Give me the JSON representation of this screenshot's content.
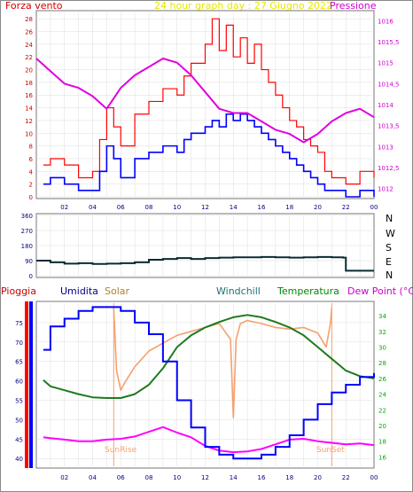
{
  "header": {
    "left_label": "Forza vento",
    "title": "24 hour graph day : 27 Giugno 2022",
    "right_label": "Pressione"
  },
  "bottom_header": {
    "pioggia": "Pioggia",
    "umidita": "Umidita",
    "solar": "Solar",
    "windchill": "Windchill",
    "temperatura": "Temperatura",
    "dewpoint": "Dew Point (°C)"
  },
  "colors": {
    "wind": "#ff0000",
    "gust": "#0000ff",
    "pressure": "#e000e0",
    "direction": "#0a2a33",
    "humidity": "#0000ff",
    "solar": "#f4a070",
    "temperature": "#1e7a1e",
    "dewpoint": "#ff00ff",
    "rain": "#ff0000",
    "left_axis": "#cc0000",
    "right_axis": "#cc00cc",
    "temp_axis": "#00aa00"
  },
  "sun_labels": {
    "sunrise": "SunRise",
    "sunset": "SunSet"
  },
  "chart_data": [
    {
      "type": "line",
      "title": "24 hour graph day : 27 Giugno 2022",
      "x_ticks": [
        "02",
        "04",
        "06",
        "08",
        "10",
        "12",
        "14",
        "16",
        "18",
        "20",
        "22",
        "00"
      ],
      "left_axis": {
        "label": "Forza vento",
        "ylim": [
          0,
          29
        ],
        "ticks": [
          0,
          2,
          4,
          6,
          8,
          10,
          12,
          14,
          16,
          18,
          20,
          22,
          24,
          26,
          28
        ]
      },
      "right_axis": {
        "label": "Pressione",
        "ylim": [
          1011.8,
          1016.2
        ],
        "ticks": [
          "1012",
          "1012,5",
          "1013",
          "1013,5",
          "1014",
          "1014,5",
          "1015",
          "1015,5",
          "1016"
        ]
      },
      "series": [
        {
          "name": "Forza vento",
          "axis": "left",
          "x": [
            0.5,
            1,
            2,
            3,
            4,
            4.5,
            5,
            5.5,
            6,
            7,
            8,
            9,
            10,
            10.5,
            11,
            12,
            12.5,
            13,
            13.5,
            14,
            14.5,
            15,
            15.5,
            16,
            16.5,
            17,
            17.5,
            18,
            18.5,
            19,
            19.5,
            20,
            20.5,
            21,
            22,
            23,
            24
          ],
          "values": [
            5,
            6,
            5,
            3,
            4,
            9,
            14,
            11,
            8,
            13,
            15,
            17,
            16,
            19,
            21,
            24,
            28,
            23,
            27,
            22,
            25,
            21,
            24,
            20,
            18,
            16,
            14,
            12,
            11,
            9,
            8,
            7,
            4,
            3,
            2,
            4,
            3
          ]
        },
        {
          "name": "Raffica",
          "axis": "left",
          "x": [
            0.5,
            1,
            2,
            3,
            4,
            4.5,
            5,
            5.5,
            6,
            7,
            8,
            9,
            10,
            10.5,
            11,
            12,
            12.5,
            13,
            13.5,
            14,
            14.5,
            15,
            15.5,
            16,
            16.5,
            17,
            17.5,
            18,
            18.5,
            19,
            19.5,
            20,
            20.5,
            21,
            22,
            23,
            24
          ],
          "values": [
            2,
            3,
            2,
            1,
            1,
            4,
            8,
            6,
            3,
            6,
            7,
            8,
            7,
            9,
            10,
            11,
            12,
            11,
            13,
            12,
            13,
            12,
            11,
            10,
            9,
            8,
            7,
            6,
            5,
            4,
            3,
            2,
            1,
            1,
            0,
            1,
            0
          ]
        },
        {
          "name": "Pressione",
          "axis": "right",
          "x": [
            0,
            1,
            2,
            3,
            4,
            5,
            6,
            7,
            8,
            9,
            10,
            11,
            12,
            13,
            14,
            15,
            16,
            17,
            18,
            19,
            20,
            21,
            22,
            23,
            24
          ],
          "values": [
            1015.1,
            1014.8,
            1014.5,
            1014.4,
            1014.2,
            1013.9,
            1014.4,
            1014.7,
            1014.9,
            1015.1,
            1015,
            1014.7,
            1014.3,
            1013.9,
            1013.8,
            1013.8,
            1013.6,
            1013.4,
            1013.3,
            1013.1,
            1013.3,
            1013.6,
            1013.8,
            1013.9,
            1013.7
          ]
        }
      ]
    },
    {
      "type": "line",
      "x_ticks": [],
      "left_axis": {
        "ylim": [
          0,
          360
        ],
        "ticks": [
          0,
          90,
          180,
          270,
          360
        ]
      },
      "direction_labels": [
        "N",
        "W",
        "S",
        "E",
        "N"
      ],
      "series": [
        {
          "name": "Direzione",
          "x": [
            0,
            1,
            2,
            3,
            4,
            5,
            6,
            7,
            8,
            9,
            10,
            11,
            12,
            13,
            14,
            15,
            16,
            17,
            18,
            19,
            20,
            21,
            21.8,
            22,
            23,
            24
          ],
          "values": [
            90,
            80,
            72,
            75,
            70,
            72,
            75,
            80,
            95,
            100,
            105,
            100,
            105,
            108,
            110,
            110,
            112,
            110,
            108,
            110,
            112,
            110,
            108,
            30,
            30,
            30
          ]
        }
      ]
    },
    {
      "type": "line",
      "x_ticks": [
        "02",
        "04",
        "06",
        "08",
        "10",
        "12",
        "14",
        "16",
        "18",
        "20",
        "22",
        "00"
      ],
      "left_axis": {
        "label": "Umidita",
        "ylim": [
          38,
          80
        ],
        "ticks": [
          40,
          45,
          50,
          55,
          60,
          65,
          70,
          75
        ]
      },
      "right_axis": {
        "label": "Temperatura",
        "ylim": [
          14.8,
          35.6
        ],
        "ticks": [
          16,
          18,
          20,
          22,
          24,
          26,
          28,
          30,
          32,
          34
        ]
      },
      "series": [
        {
          "name": "Umidita",
          "axis": "left",
          "x": [
            0.5,
            1,
            2,
            3,
            4,
            5,
            6,
            7,
            8,
            9,
            10,
            11,
            12,
            13,
            14,
            15,
            16,
            17,
            18,
            19,
            20,
            21,
            22,
            23,
            24
          ],
          "values": [
            68,
            74,
            76,
            78,
            79,
            79,
            78,
            75,
            72,
            65,
            55,
            48,
            43,
            41,
            40,
            40,
            41,
            43,
            46,
            50,
            54,
            57,
            59,
            61,
            62
          ]
        },
        {
          "name": "Temperatura",
          "axis": "right",
          "x": [
            0.5,
            1,
            2,
            3,
            4,
            5,
            6,
            7,
            8,
            9,
            10,
            11,
            12,
            13,
            14,
            15,
            16,
            17,
            18,
            19,
            20,
            21,
            22,
            23,
            24
          ],
          "values": [
            25.8,
            25,
            24.5,
            24,
            23.6,
            23.5,
            23.5,
            24,
            25.2,
            27.3,
            30,
            31.5,
            32.5,
            33.2,
            33.8,
            34.1,
            33.8,
            33.2,
            32.5,
            31.5,
            30,
            28.5,
            27,
            26.3,
            26
          ]
        },
        {
          "name": "Solar",
          "axis": "right",
          "x": [
            5.5,
            5.7,
            6,
            6.3,
            7,
            8,
            9,
            10,
            11,
            12,
            13,
            13.8,
            14,
            14.2,
            14.5,
            15,
            16,
            17,
            18,
            19,
            20,
            20.6,
            20.9,
            21
          ],
          "values": [
            35,
            27,
            24.5,
            25.5,
            27.5,
            29.5,
            30.5,
            31.5,
            32,
            32.5,
            33,
            31,
            21,
            31,
            33,
            33.4,
            33,
            32.5,
            32.3,
            32.5,
            31.8,
            30,
            33,
            35
          ]
        },
        {
          "name": "Dew Point",
          "axis": "right",
          "x": [
            0.5,
            1,
            2,
            3,
            4,
            5,
            6,
            7,
            8,
            9,
            10,
            11,
            12,
            13,
            14,
            15,
            16,
            17,
            18,
            19,
            20,
            21,
            22,
            23,
            24
          ],
          "values": [
            18.5,
            18.4,
            18.2,
            18,
            18,
            18.2,
            18.3,
            18.6,
            19.2,
            19.8,
            19.1,
            18.5,
            17.4,
            16.8,
            16.6,
            16.7,
            17,
            17.6,
            18.2,
            18.3,
            18,
            17.8,
            17.6,
            17.7,
            17.5
          ]
        }
      ]
    }
  ]
}
